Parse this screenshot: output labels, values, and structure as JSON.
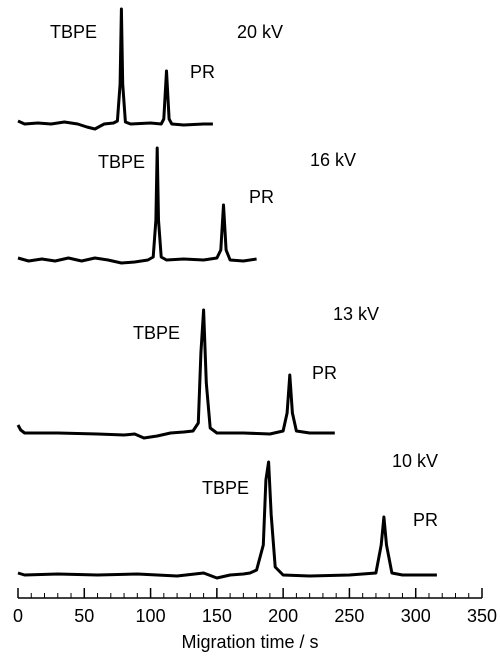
{
  "chart_data": {
    "type": "line",
    "xlabel": "Migration time / s",
    "xlim": [
      0,
      350
    ],
    "xticks": [
      0,
      50,
      100,
      150,
      200,
      250,
      300,
      350
    ],
    "xminorticks": [
      0,
      10,
      20,
      30,
      40,
      50,
      60,
      70,
      80,
      90,
      100,
      110,
      120,
      130,
      140,
      150,
      160,
      170,
      180,
      190,
      200,
      210,
      220,
      230,
      240,
      250,
      260,
      270,
      280,
      290,
      300,
      310,
      320,
      330,
      340,
      350
    ],
    "ylim": [
      -10,
      125
    ],
    "color": "#000000",
    "series": [
      {
        "name": "20 kV",
        "labels": [
          "TBPE",
          "PR"
        ],
        "x": [
          0,
          5,
          15,
          25,
          35,
          45,
          52,
          58,
          65,
          72,
          75,
          77,
          78,
          79,
          81,
          85,
          100,
          108,
          110,
          112,
          114,
          116,
          125,
          140,
          147
        ],
        "values": [
          3,
          0,
          1,
          0,
          2,
          0,
          -3,
          -5,
          0,
          1,
          3,
          40,
          115,
          40,
          2,
          0,
          1,
          0,
          5,
          53,
          5,
          0,
          -1,
          0,
          0
        ]
      },
      {
        "name": "16 kV",
        "labels": [
          "TBPE",
          "PR"
        ],
        "x": [
          0,
          8,
          18,
          28,
          38,
          48,
          58,
          68,
          78,
          88,
          98,
          102,
          104,
          105,
          106,
          108,
          112,
          125,
          140,
          150,
          153,
          155,
          157,
          160,
          170,
          180
        ],
        "values": [
          2,
          -1,
          1,
          -1,
          2,
          -1,
          2,
          0,
          -3,
          -2,
          0,
          3,
          40,
          112,
          40,
          3,
          0,
          1,
          0,
          2,
          10,
          55,
          10,
          0,
          -1,
          1
        ]
      },
      {
        "name": "13 kV",
        "labels": [
          "TBPE",
          "PR"
        ],
        "x": [
          0,
          2,
          5,
          30,
          60,
          80,
          88,
          95,
          105,
          115,
          125,
          132,
          136,
          138,
          140,
          142,
          145,
          150,
          170,
          190,
          200,
          203,
          205,
          207,
          210,
          220,
          239
        ],
        "values": [
          8,
          3,
          0,
          0,
          -1,
          -2,
          -1,
          -5,
          -3,
          0,
          1,
          2,
          10,
          80,
          123,
          50,
          5,
          0,
          0,
          -1,
          2,
          20,
          58,
          20,
          2,
          0,
          0
        ]
      },
      {
        "name": "10 kV",
        "labels": [
          "TBPE",
          "PR"
        ],
        "x": [
          0,
          5,
          30,
          60,
          90,
          120,
          140,
          150,
          160,
          170,
          175,
          180,
          185,
          187,
          189,
          191,
          194,
          200,
          220,
          250,
          270,
          274,
          276,
          278,
          282,
          290,
          316
        ],
        "values": [
          2,
          0,
          1,
          0,
          1,
          -1,
          2,
          -3,
          0,
          1,
          2,
          5,
          30,
          95,
          113,
          60,
          8,
          0,
          -1,
          0,
          2,
          30,
          58,
          30,
          2,
          0,
          0
        ]
      }
    ]
  }
}
